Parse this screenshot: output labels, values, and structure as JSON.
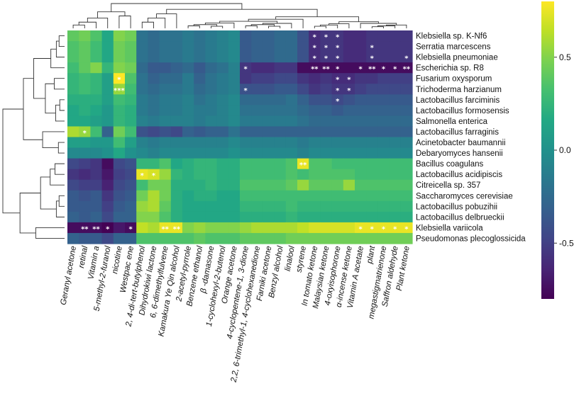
{
  "chart_data": {
    "type": "heatmap",
    "title": "",
    "colormap": "viridis",
    "color_range": [
      -0.8,
      0.8
    ],
    "colorbar_ticks": [
      0.5,
      0.0,
      -0.5
    ],
    "colorbar_tick_labels": [
      "0.5",
      "0.0",
      "-0.5"
    ],
    "rows": [
      "Klebsiella sp. K-Nf6",
      "Serratia marcescens",
      "Klebsiella pneumoniae",
      "Escherichia sp. R8",
      "Fusarium oxysporum",
      "Trichoderma harzianum",
      "Lactobacillus farciminis",
      "Lactobacillus formosensis",
      "Salmonella enterica",
      "Lactobacillus farraginis",
      "Acinetobacter baumannii",
      "Debaryomyces hansenii",
      "Bacillus coagulans",
      "Lactobacillus acidipiscis",
      "Citreicella sp. 357",
      "Saccharomyces cerevisiae",
      "Lactobacillus pobuzihii",
      "Lactobacillus delbrueckii",
      "Klebsiella variicola",
      "Pseudomonas plecoglossicida"
    ],
    "columns": [
      "Geranyl acetone",
      "retinal",
      "Vitamin a",
      "5-methyl-2-furanol",
      "nicotine",
      "Westpac ene",
      "2, 4-di-tert-butylphenol",
      "Dihydrokiwi lactone",
      "6, 6-dimethylfulvene",
      "Kamakura Ye Qin alcohol",
      "2-acetyl-pyrrole",
      "Benzene ethanol",
      "β -damasone",
      "1-cyclohexyl-2-butenol",
      "Orange acetone",
      "4-cyclopentene-1, 3-dione",
      "2,2, 6-trimethyl-1, 4-cyclohexanedione",
      "Farniki acetone",
      "Benzyl alcohol",
      "linalool",
      "styrene",
      "In tomato ketone",
      "Malaysian ketone",
      "4-oxyisophorone",
      "α-incense ketone",
      "Vitamin A acetate",
      "plant",
      "megastigmatrienone",
      "Saffron aldehyde",
      "Plant ketone"
    ],
    "values": [
      [
        0.4,
        0.45,
        0.35,
        0.15,
        0.5,
        0.45,
        -0.2,
        -0.25,
        -0.2,
        -0.2,
        -0.15,
        -0.2,
        -0.15,
        -0.1,
        -0.05,
        -0.35,
        -0.3,
        -0.3,
        -0.25,
        -0.25,
        -0.4,
        -0.6,
        -0.55,
        -0.55,
        -0.6,
        -0.6,
        -0.55,
        -0.55,
        -0.55,
        -0.55
      ],
      [
        0.35,
        0.4,
        0.3,
        0.15,
        0.45,
        0.4,
        -0.2,
        -0.25,
        -0.2,
        -0.2,
        -0.15,
        -0.2,
        -0.15,
        -0.1,
        -0.05,
        -0.35,
        -0.3,
        -0.3,
        -0.25,
        -0.25,
        -0.4,
        -0.6,
        -0.55,
        -0.55,
        -0.6,
        -0.6,
        -0.55,
        -0.55,
        -0.55,
        -0.55
      ],
      [
        0.35,
        0.4,
        0.3,
        0.15,
        0.45,
        0.4,
        -0.2,
        -0.25,
        -0.2,
        -0.2,
        -0.15,
        -0.2,
        -0.15,
        -0.1,
        -0.05,
        -0.35,
        -0.3,
        -0.3,
        -0.25,
        -0.25,
        -0.4,
        -0.6,
        -0.55,
        -0.55,
        -0.6,
        -0.6,
        -0.55,
        -0.55,
        -0.55,
        -0.55
      ],
      [
        0.3,
        0.4,
        0.5,
        0.25,
        0.5,
        0.45,
        -0.25,
        -0.35,
        -0.35,
        -0.3,
        -0.25,
        -0.35,
        -0.25,
        -0.2,
        -0.1,
        -0.55,
        -0.6,
        -0.6,
        -0.55,
        -0.55,
        -0.75,
        -0.75,
        -0.75,
        -0.75,
        -0.75,
        -0.75,
        -0.75,
        -0.75,
        -0.75,
        -0.75
      ],
      [
        0.25,
        0.3,
        0.25,
        0.1,
        0.8,
        0.35,
        -0.2,
        -0.3,
        -0.25,
        -0.25,
        -0.15,
        -0.3,
        -0.2,
        -0.15,
        -0.1,
        -0.55,
        -0.5,
        -0.5,
        -0.45,
        -0.45,
        -0.55,
        -0.6,
        -0.55,
        -0.6,
        -0.6,
        -0.55,
        -0.55,
        -0.5,
        -0.5,
        -0.5
      ],
      [
        0.25,
        0.3,
        0.25,
        0.1,
        0.55,
        0.3,
        -0.2,
        -0.25,
        -0.2,
        -0.2,
        -0.15,
        -0.25,
        -0.2,
        -0.15,
        -0.1,
        -0.4,
        -0.4,
        -0.4,
        -0.35,
        -0.35,
        -0.45,
        -0.55,
        -0.5,
        -0.55,
        -0.55,
        -0.5,
        -0.45,
        -0.45,
        -0.45,
        -0.45
      ],
      [
        0.2,
        0.2,
        0.2,
        0.1,
        0.3,
        0.25,
        -0.15,
        -0.2,
        -0.15,
        -0.15,
        -0.1,
        -0.2,
        -0.15,
        -0.1,
        -0.05,
        -0.25,
        -0.25,
        -0.25,
        -0.25,
        -0.2,
        -0.3,
        -0.4,
        -0.4,
        -0.45,
        -0.4,
        -0.35,
        -0.35,
        -0.35,
        -0.35,
        -0.35
      ],
      [
        0.15,
        0.2,
        0.15,
        0.05,
        0.25,
        0.2,
        -0.15,
        -0.2,
        -0.15,
        -0.15,
        -0.1,
        -0.15,
        -0.15,
        -0.1,
        -0.05,
        -0.2,
        -0.2,
        -0.2,
        -0.2,
        -0.2,
        -0.25,
        -0.3,
        -0.3,
        -0.35,
        -0.3,
        -0.3,
        -0.3,
        -0.3,
        -0.3,
        -0.3
      ],
      [
        0.15,
        0.15,
        0.1,
        0.05,
        0.25,
        0.2,
        -0.1,
        -0.15,
        -0.1,
        -0.1,
        -0.1,
        -0.15,
        -0.1,
        -0.1,
        -0.05,
        -0.15,
        -0.15,
        -0.15,
        -0.15,
        -0.15,
        -0.2,
        -0.25,
        -0.25,
        -0.25,
        -0.25,
        -0.25,
        -0.25,
        -0.25,
        -0.25,
        -0.25
      ],
      [
        0.6,
        0.55,
        0.3,
        -0.3,
        0.45,
        0.3,
        -0.4,
        -0.45,
        -0.4,
        -0.45,
        -0.3,
        -0.35,
        -0.3,
        -0.3,
        -0.2,
        -0.3,
        -0.3,
        -0.3,
        -0.3,
        -0.3,
        -0.3,
        -0.3,
        -0.3,
        -0.3,
        -0.3,
        -0.3,
        -0.3,
        -0.3,
        -0.3,
        -0.3
      ],
      [
        0.1,
        0.1,
        0.05,
        0.05,
        0.3,
        0.1,
        -0.1,
        -0.15,
        -0.1,
        -0.1,
        -0.1,
        -0.1,
        -0.1,
        -0.1,
        -0.05,
        -0.1,
        -0.1,
        -0.1,
        -0.1,
        -0.1,
        -0.15,
        -0.1,
        -0.1,
        -0.1,
        -0.1,
        -0.1,
        -0.1,
        -0.1,
        -0.1,
        -0.1
      ],
      [
        -0.05,
        -0.05,
        -0.05,
        0.0,
        0.15,
        0.0,
        -0.05,
        -0.1,
        -0.05,
        -0.05,
        -0.05,
        -0.05,
        -0.05,
        -0.05,
        0.0,
        -0.05,
        -0.05,
        -0.05,
        -0.05,
        -0.05,
        -0.1,
        -0.05,
        -0.05,
        -0.05,
        -0.05,
        -0.05,
        -0.05,
        -0.05,
        -0.05,
        -0.05
      ],
      [
        -0.45,
        -0.5,
        -0.55,
        -0.75,
        -0.45,
        -0.4,
        0.25,
        0.25,
        0.35,
        0.15,
        0.2,
        0.25,
        0.25,
        0.2,
        0.2,
        0.3,
        0.3,
        0.3,
        0.3,
        0.35,
        0.75,
        0.35,
        0.35,
        0.3,
        0.3,
        0.3,
        0.3,
        0.3,
        0.3,
        0.3
      ],
      [
        -0.55,
        -0.6,
        -0.55,
        -0.7,
        -0.5,
        -0.45,
        0.75,
        0.7,
        0.55,
        0.25,
        0.2,
        0.25,
        0.25,
        0.2,
        0.2,
        0.3,
        0.3,
        0.3,
        0.3,
        0.35,
        0.3,
        0.35,
        0.35,
        0.35,
        0.35,
        0.3,
        0.3,
        0.3,
        0.3,
        0.3
      ],
      [
        -0.45,
        -0.5,
        -0.5,
        -0.65,
        -0.45,
        -0.4,
        0.3,
        0.45,
        0.45,
        0.2,
        0.2,
        0.2,
        0.25,
        0.2,
        0.2,
        0.35,
        0.35,
        0.35,
        0.35,
        0.4,
        0.55,
        0.4,
        0.4,
        0.4,
        0.55,
        0.35,
        0.35,
        0.35,
        0.35,
        0.35
      ],
      [
        -0.35,
        -0.4,
        -0.35,
        -0.55,
        -0.4,
        -0.35,
        0.45,
        0.6,
        0.45,
        0.2,
        0.15,
        0.2,
        0.2,
        0.15,
        0.15,
        0.3,
        0.3,
        0.3,
        0.3,
        0.3,
        0.3,
        0.3,
        0.3,
        0.3,
        0.3,
        0.3,
        0.3,
        0.3,
        0.3,
        0.3
      ],
      [
        -0.35,
        -0.35,
        -0.35,
        -0.5,
        -0.35,
        -0.3,
        0.55,
        0.6,
        0.4,
        0.2,
        0.15,
        0.15,
        0.15,
        0.15,
        0.15,
        0.25,
        0.25,
        0.25,
        0.25,
        0.3,
        0.25,
        0.25,
        0.25,
        0.25,
        0.25,
        0.25,
        0.25,
        0.25,
        0.25,
        0.25
      ],
      [
        -0.3,
        -0.35,
        -0.3,
        -0.45,
        -0.3,
        -0.3,
        0.5,
        0.5,
        0.35,
        0.2,
        0.15,
        0.15,
        0.15,
        0.15,
        0.15,
        0.2,
        0.2,
        0.2,
        0.2,
        0.25,
        0.2,
        0.2,
        0.2,
        0.2,
        0.2,
        0.2,
        0.2,
        0.2,
        0.2,
        0.2
      ],
      [
        -0.75,
        -0.75,
        -0.75,
        -0.8,
        -0.7,
        -0.75,
        0.65,
        0.6,
        0.75,
        0.75,
        0.5,
        0.55,
        0.5,
        0.5,
        0.5,
        0.55,
        0.6,
        0.6,
        0.6,
        0.6,
        0.65,
        0.7,
        0.7,
        0.7,
        0.7,
        0.75,
        0.75,
        0.75,
        0.75,
        0.75
      ],
      [
        -0.3,
        -0.35,
        -0.35,
        -0.45,
        -0.3,
        -0.3,
        0.35,
        0.35,
        0.35,
        0.35,
        0.35,
        0.4,
        0.35,
        0.35,
        0.35,
        0.4,
        0.4,
        0.4,
        0.4,
        0.45,
        0.45,
        0.45,
        0.45,
        0.45,
        0.45,
        0.45,
        0.45,
        0.45,
        0.45,
        0.45
      ]
    ],
    "annotations": [
      {
        "row": "Klebsiella sp. K-Nf6",
        "column": "In tomato ketone",
        "text": "*"
      },
      {
        "row": "Klebsiella sp. K-Nf6",
        "column": "Malaysian ketone",
        "text": "*"
      },
      {
        "row": "Klebsiella sp. K-Nf6",
        "column": "4-oxyisophorone",
        "text": "*"
      },
      {
        "row": "Serratia marcescens",
        "column": "In tomato ketone",
        "text": "*"
      },
      {
        "row": "Serratia marcescens",
        "column": "Malaysian ketone",
        "text": "*"
      },
      {
        "row": "Serratia marcescens",
        "column": "4-oxyisophorone",
        "text": "*"
      },
      {
        "row": "Serratia marcescens",
        "column": "plant",
        "text": "*"
      },
      {
        "row": "Klebsiella pneumoniae",
        "column": "In tomato ketone",
        "text": "*"
      },
      {
        "row": "Klebsiella pneumoniae",
        "column": "Malaysian ketone",
        "text": "*"
      },
      {
        "row": "Klebsiella pneumoniae",
        "column": "4-oxyisophorone",
        "text": "*"
      },
      {
        "row": "Klebsiella pneumoniae",
        "column": "plant",
        "text": "*"
      },
      {
        "row": "Klebsiella pneumoniae",
        "column": "Plant ketone",
        "text": "*"
      },
      {
        "row": "Escherichia sp. R8",
        "column": "4-cyclopentene-1, 3-dione",
        "text": "*"
      },
      {
        "row": "Escherichia sp. R8",
        "column": "In tomato ketone",
        "text": "**"
      },
      {
        "row": "Escherichia sp. R8",
        "column": "Malaysian ketone",
        "text": "**"
      },
      {
        "row": "Escherichia sp. R8",
        "column": "4-oxyisophorone",
        "text": "*"
      },
      {
        "row": "Escherichia sp. R8",
        "column": "Vitamin A acetate",
        "text": "*"
      },
      {
        "row": "Escherichia sp. R8",
        "column": "plant",
        "text": "**"
      },
      {
        "row": "Escherichia sp. R8",
        "column": "megastigmatrienone",
        "text": "*"
      },
      {
        "row": "Escherichia sp. R8",
        "column": "Saffron aldehyde",
        "text": "*"
      },
      {
        "row": "Escherichia sp. R8",
        "column": "Plant ketone",
        "text": "**"
      },
      {
        "row": "Fusarium oxysporum",
        "column": "nicotine",
        "text": "*"
      },
      {
        "row": "Fusarium oxysporum",
        "column": "4-oxyisophorone",
        "text": "*"
      },
      {
        "row": "Fusarium oxysporum",
        "column": "α-incense ketone",
        "text": "*"
      },
      {
        "row": "Trichoderma harzianum",
        "column": "nicotine",
        "text": "***"
      },
      {
        "row": "Trichoderma harzianum",
        "column": "4-cyclopentene-1, 3-dione",
        "text": "*"
      },
      {
        "row": "Trichoderma harzianum",
        "column": "4-oxyisophorone",
        "text": "*"
      },
      {
        "row": "Trichoderma harzianum",
        "column": "α-incense ketone",
        "text": "*"
      },
      {
        "row": "Lactobacillus farciminis",
        "column": "4-oxyisophorone",
        "text": "*"
      },
      {
        "row": "Lactobacillus farraginis",
        "column": "retinal",
        "text": "*"
      },
      {
        "row": "Bacillus coagulans",
        "column": "styrene",
        "text": "**"
      },
      {
        "row": "Lactobacillus acidipiscis",
        "column": "2, 4-di-tert-butylphenol",
        "text": "*"
      },
      {
        "row": "Lactobacillus acidipiscis",
        "column": "Dihydrokiwi lactone",
        "text": "*"
      },
      {
        "row": "Klebsiella variicola",
        "column": "retinal",
        "text": "**"
      },
      {
        "row": "Klebsiella variicola",
        "column": "Vitamin a",
        "text": "**"
      },
      {
        "row": "Klebsiella variicola",
        "column": "5-methyl-2-furanol",
        "text": "*"
      },
      {
        "row": "Klebsiella variicola",
        "column": "Westpac ene",
        "text": "*"
      },
      {
        "row": "Klebsiella variicola",
        "column": "6, 6-dimethylfulvene",
        "text": "**"
      },
      {
        "row": "Klebsiella variicola",
        "column": "Kamakura Ye Qin alcohol",
        "text": "**"
      },
      {
        "row": "Klebsiella variicola",
        "column": "Vitamin A acetate",
        "text": "*"
      },
      {
        "row": "Klebsiella variicola",
        "column": "plant",
        "text": "*"
      },
      {
        "row": "Klebsiella variicola",
        "column": "megastigmatrienone",
        "text": "*"
      },
      {
        "row": "Klebsiella variicola",
        "column": "Saffron aldehyde",
        "text": "*"
      },
      {
        "row": "Klebsiella variicola",
        "column": "Plant ketone",
        "text": "*"
      }
    ],
    "row_dendrogram": [
      {
        "a": "Klebsiella sp. K-Nf6",
        "b": "Serratia marcescens",
        "h": 0.8
      },
      {
        "a": 0,
        "b": "Klebsiella pneumoniae",
        "h": 1.2
      },
      {
        "a": 1,
        "b": "Escherichia sp. R8",
        "h": 2.0
      },
      {
        "a": "Fusarium oxysporum",
        "b": "Trichoderma harzianum",
        "h": 1.5
      },
      {
        "a": "Lactobacillus farciminis",
        "b": "Lactobacillus formosensis",
        "h": 0.7
      },
      {
        "a": 4,
        "b": "Salmonella enterica",
        "h": 1.3
      },
      {
        "a": 3,
        "b": 5,
        "h": 2.8
      },
      {
        "a": 2,
        "b": 6,
        "h": 4.5
      },
      {
        "a": "Acinetobacter baumannii",
        "b": "Debaryomyces hansenii",
        "h": 0.9
      },
      {
        "a": "Lactobacillus farraginis",
        "b": 8,
        "h": 3.2
      },
      {
        "a": 7,
        "b": 9,
        "h": 6.0
      },
      {
        "a": "Bacillus coagulans",
        "b": "Lactobacillus acidipiscis",
        "h": 1.4
      },
      {
        "a": 11,
        "b": "Citreicella sp. 357",
        "h": 2.1
      },
      {
        "a": "Saccharomyces cerevisiae",
        "b": "Lactobacillus pobuzihii",
        "h": 0.8
      },
      {
        "a": 13,
        "b": "Lactobacillus delbrueckii",
        "h": 1.2
      },
      {
        "a": 12,
        "b": 14,
        "h": 3.5
      },
      {
        "a": "Klebsiella variicola",
        "b": "Pseudomonas plecoglossicida",
        "h": 4.2
      },
      {
        "a": 15,
        "b": 16,
        "h": 6.5
      },
      {
        "a": 10,
        "b": 17,
        "h": 9.0
      }
    ],
    "column_dendrogram": [
      {
        "a": "Geranyl acetone",
        "b": "retinal",
        "h": 0.8
      },
      {
        "a": 0,
        "b": "Vitamin a",
        "h": 1.5
      },
      {
        "a": 1,
        "b": "5-methyl-2-furanol",
        "h": 2.5
      },
      {
        "a": "nicotine",
        "b": "Westpac ene",
        "h": 3.0
      },
      {
        "a": 2,
        "b": 3,
        "h": 4.0
      },
      {
        "a": "2, 4-di-tert-butylphenol",
        "b": "Dihydrokiwi lactone",
        "h": 1.5
      },
      {
        "a": 5,
        "b": "6, 6-dimethylfulvene",
        "h": 2.5
      },
      {
        "a": 6,
        "b": "Kamakura Ye Qin alcohol",
        "h": 3.5
      },
      {
        "a": "2-acetyl-pyrrole",
        "b": "Benzene ethanol",
        "h": 0.6
      },
      {
        "a": "β -damasone",
        "b": "1-cyclohexyl-2-butenol",
        "h": 0.5
      },
      {
        "a": 8,
        "b": 9,
        "h": 0.9
      },
      {
        "a": 10,
        "b": "Orange acetone",
        "h": 1.3
      },
      {
        "a": "4-cyclopentene-1, 3-dione",
        "b": "2,2, 6-trimethyl-1, 4-cyclohexanedione",
        "h": 0.6
      },
      {
        "a": "Farniki acetone",
        "b": "Benzyl alcohol",
        "h": 0.5
      },
      {
        "a": 12,
        "b": 13,
        "h": 0.9
      },
      {
        "a": 14,
        "b": "linalool",
        "h": 1.2
      },
      {
        "a": 11,
        "b": 15,
        "h": 1.7
      },
      {
        "a": 16,
        "b": "styrene",
        "h": 2.2
      },
      {
        "a": "In tomato ketone",
        "b": "Malaysian ketone",
        "h": 0.5
      },
      {
        "a": 18,
        "b": "4-oxyisophorone",
        "h": 0.8
      },
      {
        "a": 19,
        "b": "α-incense ketone",
        "h": 1.1
      },
      {
        "a": "plant",
        "b": "megastigmatrienone",
        "h": 0.4
      },
      {
        "a": 21,
        "b": "Saffron aldehyde",
        "h": 0.6
      },
      {
        "a": 22,
        "b": "Plant ketone",
        "h": 0.8
      },
      {
        "a": "Vitamin A acetate",
        "b": 23,
        "h": 1.2
      },
      {
        "a": 20,
        "b": 24,
        "h": 1.6
      },
      {
        "a": 17,
        "b": 25,
        "h": 2.8
      },
      {
        "a": 7,
        "b": 26,
        "h": 4.6
      },
      {
        "a": 4,
        "b": 27,
        "h": 6.0
      }
    ]
  }
}
